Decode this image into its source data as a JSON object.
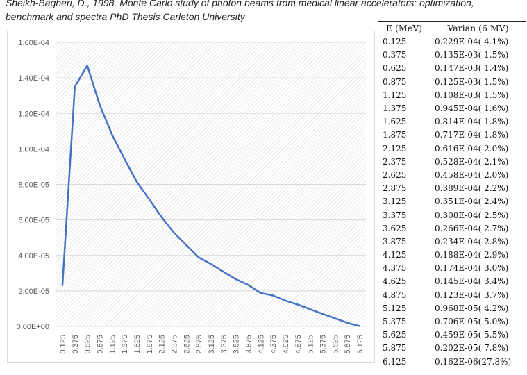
{
  "caption": {
    "line1": "Sheikh-Bagheri, D., 1998. Monte Carlo study of photon beams from medical linear accelerators: optimization,",
    "line2": "benchmark and spectra PhD Thesis Carleton University"
  },
  "chart_data": {
    "type": "line",
    "title": "",
    "xlabel": "",
    "ylabel": "",
    "grid": true,
    "legend": "none",
    "color": "#4472c4",
    "ylim": [
      0,
      0.00016
    ],
    "yticks": [
      0,
      2e-05,
      4e-05,
      6e-05,
      8e-05,
      0.0001,
      0.00012,
      0.00014,
      0.00016
    ],
    "ytick_labels": [
      "0.00E+00",
      "2.00E-05",
      "4.00E-05",
      "6.00E-05",
      "8.00E-05",
      "1.00E-04",
      "1.20E-04",
      "1.40E-04",
      "1.60E-04"
    ],
    "categories": [
      "0.125",
      "0.375",
      "0.625",
      "0.875",
      "1.125",
      "1.375",
      "1.625",
      "1.875",
      "2.125",
      "2.375",
      "2.625",
      "2.875",
      "3.125",
      "3.375",
      "3.625",
      "3.875",
      "4.125",
      "4.375",
      "4.625",
      "4.875",
      "5.125",
      "5.375",
      "5.625",
      "5.875",
      "6.125"
    ],
    "series": [
      {
        "values": [
          2.29e-05,
          0.000135,
          0.000147,
          0.000125,
          0.000108,
          9.45e-05,
          8.14e-05,
          7.17e-05,
          6.16e-05,
          5.28e-05,
          4.58e-05,
          3.89e-05,
          3.51e-05,
          3.08e-05,
          2.66e-05,
          2.34e-05,
          1.88e-05,
          1.74e-05,
          1.45e-05,
          1.23e-05,
          9.68e-06,
          7.06e-06,
          4.59e-06,
          2.02e-06,
          1.62e-07
        ]
      }
    ]
  },
  "table": {
    "headers": [
      "E (MeV)",
      "Varian (6 MV)"
    ],
    "rows": [
      [
        "0.125",
        "0.229E-04( 4.1%)"
      ],
      [
        "0.375",
        "0.135E-03( 1.5%)"
      ],
      [
        "0.625",
        "0.147E-03( 1.4%)"
      ],
      [
        "0.875",
        "0.125E-03( 1.5%)"
      ],
      [
        "1.125",
        "0.108E-03( 1.5%)"
      ],
      [
        "1.375",
        "0.945E-04( 1.6%)"
      ],
      [
        "1.625",
        "0.814E-04( 1.8%)"
      ],
      [
        "1.875",
        "0.717E-04( 1.8%)"
      ],
      [
        "2.125",
        "0.616E-04( 2.0%)"
      ],
      [
        "2.375",
        "0.528E-04( 2.1%)"
      ],
      [
        "2.625",
        "0.458E-04( 2.0%)"
      ],
      [
        "2.875",
        "0.389E-04( 2.2%)"
      ],
      [
        "3.125",
        "0.351E-04( 2.4%)"
      ],
      [
        "3.375",
        "0.308E-04( 2.5%)"
      ],
      [
        "3.625",
        "0.266E-04( 2.7%)"
      ],
      [
        "3.875",
        "0.234E-04( 2.8%)"
      ],
      [
        "4.125",
        "0.188E-04( 2.9%)"
      ],
      [
        "4.375",
        "0.174E-04( 3.0%)"
      ],
      [
        "4.625",
        "0.145E-04( 3.4%)"
      ],
      [
        "4.875",
        "0.123E-04( 3.7%)"
      ],
      [
        "5.125",
        "0.968E-05( 4.2%)"
      ],
      [
        "5.375",
        "0.706E-05( 5.0%)"
      ],
      [
        "5.625",
        "0.459E-05( 5.5%)"
      ],
      [
        "5.875",
        "0.202E-05( 7.8%)"
      ],
      [
        "6.125",
        "0.162E-06(27.8%)"
      ]
    ]
  }
}
